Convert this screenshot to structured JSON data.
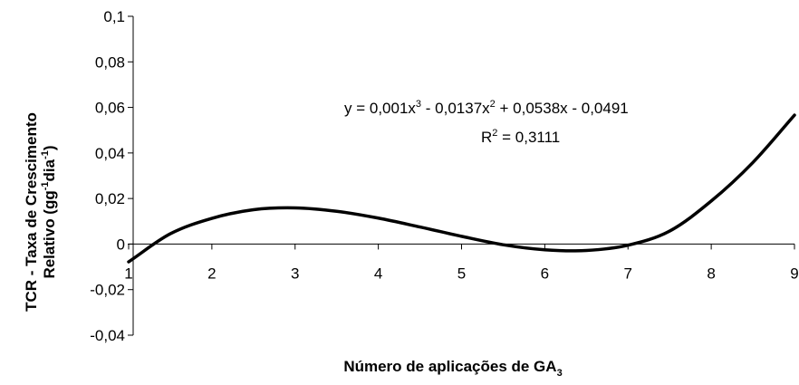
{
  "chart_data": {
    "type": "line",
    "title": "",
    "xlabel": "Número de aplicações de GA",
    "xlabel_sub": "3",
    "ylabel_line1": "TCR - Taxa de Crescimento",
    "ylabel_line2": "Relativo (gg",
    "ylabel_line2_sup1": "-1",
    "ylabel_line2_mid": "dia",
    "ylabel_line2_sup2": "-1",
    "ylabel_line2_end": ")",
    "xlim": [
      1,
      9
    ],
    "ylim": [
      -0.04,
      0.1
    ],
    "x_ticks": [
      {
        "value": 1,
        "label": "1"
      },
      {
        "value": 2,
        "label": "2"
      },
      {
        "value": 3,
        "label": "3"
      },
      {
        "value": 4,
        "label": "4"
      },
      {
        "value": 5,
        "label": "5"
      },
      {
        "value": 6,
        "label": "6"
      },
      {
        "value": 7,
        "label": "7"
      },
      {
        "value": 8,
        "label": "8"
      },
      {
        "value": 9,
        "label": "9"
      }
    ],
    "y_ticks": [
      {
        "value": 0.1,
        "label": "0,1"
      },
      {
        "value": 0.08,
        "label": "0,08"
      },
      {
        "value": 0.06,
        "label": "0,06"
      },
      {
        "value": 0.04,
        "label": "0,04"
      },
      {
        "value": 0.02,
        "label": "0,02"
      },
      {
        "value": 0,
        "label": "0"
      },
      {
        "value": -0.02,
        "label": "-0,02"
      },
      {
        "value": -0.04,
        "label": "-0,04"
      }
    ],
    "grid": false,
    "series": [
      {
        "x": [
          1,
          1.5,
          2,
          2.5,
          3,
          3.5,
          4,
          4.5,
          5,
          5.5,
          6,
          6.5,
          7,
          7.5,
          8,
          8.5,
          9
        ],
        "y": [
          -0.0078,
          0.0045,
          0.0113,
          0.0151,
          0.0159,
          0.0144,
          0.0114,
          0.0075,
          0.0034,
          -0.0003,
          -0.0025,
          -0.0028,
          -0.0005,
          0.0057,
          0.0189,
          0.0358,
          0.0566
        ]
      }
    ],
    "annotations": {
      "equation_base": "y = 0,001x",
      "equation_exp1": "3",
      "equation_mid": " - 0,0137x",
      "equation_exp2": "2",
      "equation_end": " + 0,0538x - 0,0491",
      "r2_base": "R",
      "r2_exp": "2",
      "r2_end": " = 0,3111"
    },
    "colors": {
      "line": "#000000",
      "axis": "#000000",
      "background": "#ffffff"
    }
  }
}
